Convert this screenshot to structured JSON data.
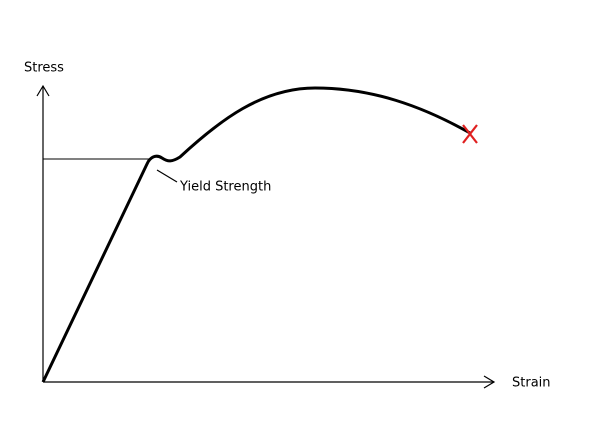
{
  "diagram": {
    "y_axis_label": "Stress",
    "x_axis_label": "Strain",
    "annotation": "Yield Strength"
  }
}
